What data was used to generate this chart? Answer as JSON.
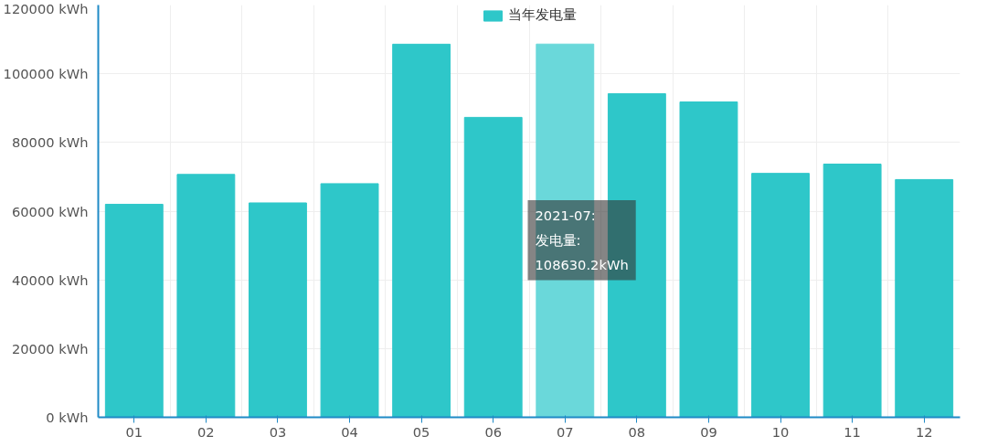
{
  "chart_data": {
    "type": "bar",
    "categories": [
      "01",
      "02",
      "03",
      "04",
      "05",
      "06",
      "07",
      "08",
      "09",
      "10",
      "11",
      "12"
    ],
    "series": [
      {
        "name": "当年发电量",
        "color": "#2ec7c9",
        "colors": [
          "#2ec7c9",
          "#2ec7c9",
          "#2ec7c9",
          "#2ec7c9",
          "#2ec7c9",
          "#2ec7c9",
          "#6ad8da",
          "#2ec7c9",
          "#2ec7c9",
          "#2ec7c9",
          "#2ec7c9",
          "#2ec7c9"
        ],
        "values": [
          62000,
          70700,
          62400,
          68000,
          108600,
          87300,
          108630.2,
          94200,
          91800,
          71000,
          73700,
          69200
        ]
      }
    ],
    "ylim": [
      0,
      120000
    ],
    "yticks": [
      {
        "value": 0,
        "label": "0 kWh"
      },
      {
        "value": 20000,
        "label": "20000 kWh"
      },
      {
        "value": 40000,
        "label": "40000 kWh"
      },
      {
        "value": 60000,
        "label": "60000 kWh"
      },
      {
        "value": 80000,
        "label": "80000 kWh"
      },
      {
        "value": 100000,
        "label": "100000 kWh"
      },
      {
        "value": 120000,
        "label": "120000 kWh"
      }
    ],
    "grid": true,
    "legend": "top",
    "annotations": [
      "2021-07:\n发电量:\n108630.2kWh"
    ]
  }
}
